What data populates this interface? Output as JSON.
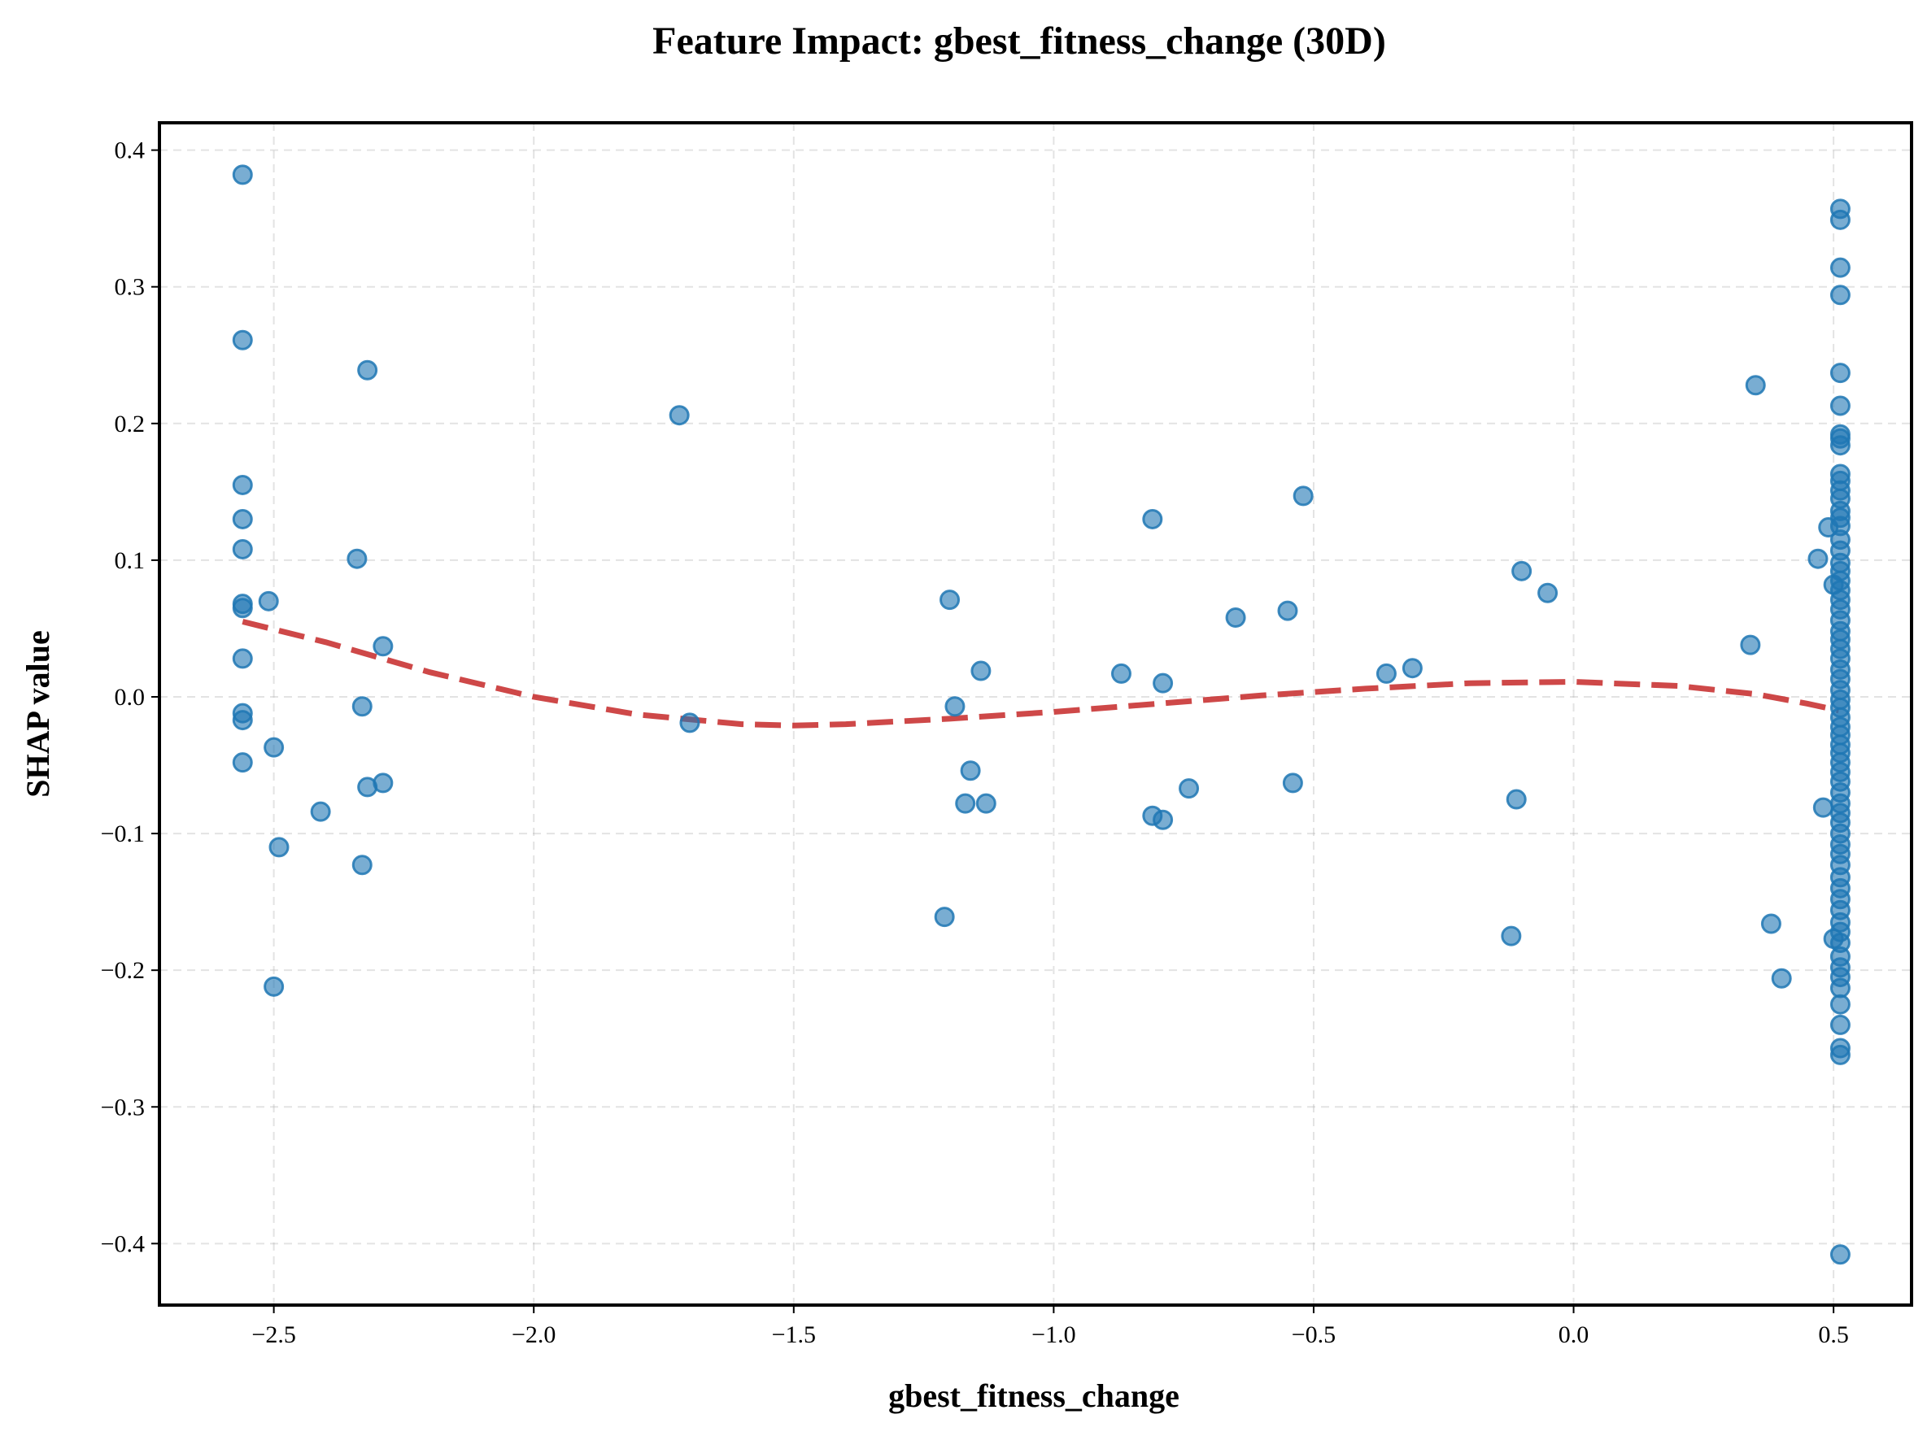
{
  "chart_data": {
    "type": "scatter",
    "title": "Feature Impact: gbest_fitness_change (30D)",
    "xlabel": "gbest_fitness_change",
    "ylabel": "SHAP value",
    "xlim": [
      -2.72,
      0.65
    ],
    "ylim": [
      -0.445,
      0.42
    ],
    "xticks": [
      -2.5,
      -2.0,
      -1.5,
      -1.0,
      -0.5,
      0.0,
      0.5
    ],
    "xtick_labels": [
      "−2.5",
      "−2.0",
      "−1.5",
      "−1.0",
      "−0.5",
      "0.0",
      "0.5"
    ],
    "yticks": [
      0.4,
      0.3,
      0.2,
      0.1,
      0.0,
      -0.1,
      -0.2,
      -0.3,
      -0.4
    ],
    "ytick_labels": [
      "0.4",
      "0.3",
      "0.2",
      "0.1",
      "0.0",
      "−0.1",
      "−0.2",
      "−0.3",
      "−0.4"
    ],
    "grid": true,
    "legend": "none",
    "colors": {
      "points": "#1f77b4",
      "trend": "#c62828",
      "frame": "#000000"
    },
    "points": [
      [
        -2.56,
        0.382
      ],
      [
        -2.56,
        0.261
      ],
      [
        -2.56,
        0.155
      ],
      [
        -2.56,
        0.13
      ],
      [
        -2.56,
        0.108
      ],
      [
        -2.56,
        0.068
      ],
      [
        -2.56,
        0.065
      ],
      [
        -2.56,
        0.028
      ],
      [
        -2.56,
        -0.012
      ],
      [
        -2.56,
        -0.017
      ],
      [
        -2.56,
        -0.048
      ],
      [
        -2.51,
        0.07
      ],
      [
        -2.5,
        -0.037
      ],
      [
        -2.5,
        -0.212
      ],
      [
        -2.49,
        -0.11
      ],
      [
        -2.41,
        -0.084
      ],
      [
        -2.34,
        0.101
      ],
      [
        -2.33,
        -0.123
      ],
      [
        -2.33,
        -0.007
      ],
      [
        -2.32,
        0.239
      ],
      [
        -2.32,
        -0.066
      ],
      [
        -2.29,
        0.037
      ],
      [
        -2.29,
        -0.063
      ],
      [
        -1.72,
        0.206
      ],
      [
        -1.7,
        -0.019
      ],
      [
        -1.21,
        -0.161
      ],
      [
        -1.2,
        0.071
      ],
      [
        -1.19,
        -0.007
      ],
      [
        -1.17,
        -0.078
      ],
      [
        -1.16,
        -0.054
      ],
      [
        -1.14,
        0.019
      ],
      [
        -1.13,
        -0.078
      ],
      [
        -0.87,
        0.017
      ],
      [
        -0.81,
        0.13
      ],
      [
        -0.81,
        -0.087
      ],
      [
        -0.79,
        0.01
      ],
      [
        -0.79,
        -0.09
      ],
      [
        -0.74,
        -0.067
      ],
      [
        -0.65,
        0.058
      ],
      [
        -0.55,
        0.063
      ],
      [
        -0.54,
        -0.063
      ],
      [
        -0.52,
        0.147
      ],
      [
        -0.36,
        0.017
      ],
      [
        -0.31,
        0.021
      ],
      [
        -0.12,
        -0.175
      ],
      [
        -0.11,
        -0.075
      ],
      [
        -0.1,
        0.092
      ],
      [
        -0.05,
        0.076
      ],
      [
        0.34,
        0.038
      ],
      [
        0.35,
        0.228
      ],
      [
        0.38,
        -0.166
      ],
      [
        0.4,
        -0.206
      ],
      [
        0.47,
        0.101
      ],
      [
        0.48,
        -0.081
      ],
      [
        0.49,
        0.124
      ],
      [
        0.5,
        0.082
      ],
      [
        0.5,
        -0.177
      ],
      [
        0.513,
        0.357
      ],
      [
        0.513,
        0.349
      ],
      [
        0.513,
        0.314
      ],
      [
        0.513,
        0.294
      ],
      [
        0.513,
        0.237
      ],
      [
        0.513,
        0.213
      ],
      [
        0.513,
        0.192
      ],
      [
        0.513,
        0.189
      ],
      [
        0.513,
        0.184
      ],
      [
        0.513,
        0.163
      ],
      [
        0.513,
        0.158
      ],
      [
        0.513,
        0.151
      ],
      [
        0.513,
        0.145
      ],
      [
        0.513,
        0.136
      ],
      [
        0.513,
        0.131
      ],
      [
        0.513,
        0.125
      ],
      [
        0.513,
        0.115
      ],
      [
        0.513,
        0.107
      ],
      [
        0.513,
        0.098
      ],
      [
        0.513,
        0.092
      ],
      [
        0.513,
        0.085
      ],
      [
        0.513,
        0.078
      ],
      [
        0.513,
        0.071
      ],
      [
        0.513,
        0.064
      ],
      [
        0.513,
        0.056
      ],
      [
        0.513,
        0.048
      ],
      [
        0.513,
        0.042
      ],
      [
        0.513,
        0.035
      ],
      [
        0.513,
        0.028
      ],
      [
        0.513,
        0.02
      ],
      [
        0.513,
        0.013
      ],
      [
        0.513,
        0.005
      ],
      [
        0.513,
        -0.002
      ],
      [
        0.513,
        -0.008
      ],
      [
        0.513,
        -0.015
      ],
      [
        0.513,
        -0.022
      ],
      [
        0.513,
        -0.028
      ],
      [
        0.513,
        -0.035
      ],
      [
        0.513,
        -0.041
      ],
      [
        0.513,
        -0.048
      ],
      [
        0.513,
        -0.055
      ],
      [
        0.513,
        -0.062
      ],
      [
        0.513,
        -0.07
      ],
      [
        0.513,
        -0.078
      ],
      [
        0.513,
        -0.085
      ],
      [
        0.513,
        -0.092
      ],
      [
        0.513,
        -0.1
      ],
      [
        0.513,
        -0.108
      ],
      [
        0.513,
        -0.115
      ],
      [
        0.513,
        -0.123
      ],
      [
        0.513,
        -0.132
      ],
      [
        0.513,
        -0.14
      ],
      [
        0.513,
        -0.148
      ],
      [
        0.513,
        -0.156
      ],
      [
        0.513,
        -0.165
      ],
      [
        0.513,
        -0.172
      ],
      [
        0.513,
        -0.18
      ],
      [
        0.513,
        -0.19
      ],
      [
        0.513,
        -0.198
      ],
      [
        0.513,
        -0.205
      ],
      [
        0.513,
        -0.213
      ],
      [
        0.513,
        -0.225
      ],
      [
        0.513,
        -0.24
      ],
      [
        0.513,
        -0.257
      ],
      [
        0.513,
        -0.262
      ],
      [
        0.513,
        -0.408
      ]
    ],
    "trend": {
      "style": "dashed",
      "x": [
        -2.56,
        -2.4,
        -2.2,
        -2.0,
        -1.8,
        -1.6,
        -1.5,
        -1.4,
        -1.2,
        -1.0,
        -0.8,
        -0.6,
        -0.4,
        -0.2,
        0.0,
        0.2,
        0.35,
        0.45,
        0.51
      ],
      "y": [
        0.055,
        0.04,
        0.018,
        0.0,
        -0.013,
        -0.02,
        -0.021,
        -0.02,
        -0.016,
        -0.011,
        -0.005,
        0.001,
        0.006,
        0.01,
        0.011,
        0.008,
        0.002,
        -0.005,
        -0.01
      ]
    }
  }
}
